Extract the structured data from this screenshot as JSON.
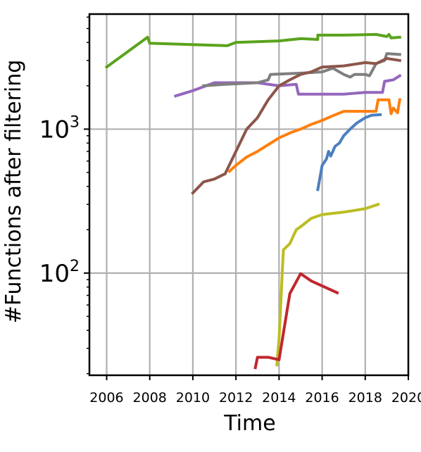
{
  "chart_data": {
    "type": "line",
    "title": "",
    "xlabel": "Time",
    "ylabel": "#Functions after filtering",
    "xlim": [
      2005.2,
      2020.0
    ],
    "ylim": [
      19.5,
      6300
    ],
    "yscale": "log",
    "grid": true,
    "legend": "none",
    "xticks": [
      {
        "value": 2006,
        "label": "2006"
      },
      {
        "value": 2008,
        "label": "2008"
      },
      {
        "value": 2010,
        "label": "2010"
      },
      {
        "value": 2012,
        "label": "2012"
      },
      {
        "value": 2014,
        "label": "2014"
      },
      {
        "value": 2016,
        "label": "2016"
      },
      {
        "value": 2018,
        "label": "2018"
      },
      {
        "value": 2020,
        "label": "2020"
      }
    ],
    "yticks": [
      {
        "value": 100,
        "base": "10",
        "exponent": "2"
      },
      {
        "value": 1000,
        "base": "10",
        "exponent": "3"
      }
    ],
    "series": [
      {
        "color": "#5aa31c",
        "points": [
          [
            2006.0,
            2700
          ],
          [
            2007.9,
            4350
          ],
          [
            2008.0,
            3950
          ],
          [
            2011.6,
            3800
          ],
          [
            2012.0,
            4000
          ],
          [
            2014.0,
            4100
          ],
          [
            2015.0,
            4250
          ],
          [
            2015.8,
            4200
          ],
          [
            2015.8,
            4500
          ],
          [
            2017.0,
            4500
          ],
          [
            2018.5,
            4550
          ],
          [
            2019.0,
            4400
          ],
          [
            2019.1,
            4550
          ],
          [
            2019.2,
            4300
          ],
          [
            2019.6,
            4350
          ]
        ]
      },
      {
        "color": "#9467bd",
        "points": [
          [
            2009.2,
            1700
          ],
          [
            2010.0,
            1850
          ],
          [
            2011.0,
            2100
          ],
          [
            2013.0,
            2100
          ],
          [
            2014.0,
            2000
          ],
          [
            2014.8,
            2050
          ],
          [
            2014.9,
            1750
          ],
          [
            2016.0,
            1750
          ],
          [
            2017.0,
            1750
          ],
          [
            2018.0,
            1800
          ],
          [
            2018.8,
            1800
          ],
          [
            2018.9,
            2150
          ],
          [
            2019.3,
            2200
          ],
          [
            2019.6,
            2350
          ]
        ]
      },
      {
        "color": "#7f7f7f",
        "points": [
          [
            2010.5,
            2000
          ],
          [
            2011.5,
            2050
          ],
          [
            2013.0,
            2100
          ],
          [
            2013.5,
            2200
          ],
          [
            2013.6,
            2400
          ],
          [
            2015.0,
            2450
          ],
          [
            2016.0,
            2500
          ],
          [
            2016.5,
            2650
          ],
          [
            2017.0,
            2400
          ],
          [
            2017.3,
            2300
          ],
          [
            2017.5,
            2400
          ],
          [
            2018.0,
            2400
          ],
          [
            2018.2,
            2350
          ],
          [
            2018.5,
            2850
          ],
          [
            2018.9,
            3000
          ],
          [
            2019.0,
            3350
          ],
          [
            2019.6,
            3300
          ]
        ]
      },
      {
        "color": "#8c564b",
        "points": [
          [
            2010.0,
            360
          ],
          [
            2010.5,
            430
          ],
          [
            2011.0,
            450
          ],
          [
            2011.5,
            490
          ],
          [
            2012.0,
            700
          ],
          [
            2012.5,
            1000
          ],
          [
            2013.0,
            1200
          ],
          [
            2013.5,
            1600
          ],
          [
            2014.0,
            2000
          ],
          [
            2014.5,
            2200
          ],
          [
            2015.0,
            2400
          ],
          [
            2015.5,
            2500
          ],
          [
            2016.0,
            2700
          ],
          [
            2017.0,
            2750
          ],
          [
            2018.0,
            2900
          ],
          [
            2018.5,
            2850
          ],
          [
            2019.0,
            3100
          ],
          [
            2019.6,
            3000
          ]
        ]
      },
      {
        "color": "#ff7f0e",
        "points": [
          [
            2011.7,
            510
          ],
          [
            2012.0,
            560
          ],
          [
            2012.5,
            640
          ],
          [
            2013.0,
            700
          ],
          [
            2013.5,
            780
          ],
          [
            2014.0,
            870
          ],
          [
            2014.5,
            940
          ],
          [
            2015.0,
            1000
          ],
          [
            2015.5,
            1080
          ],
          [
            2016.0,
            1150
          ],
          [
            2016.5,
            1240
          ],
          [
            2017.0,
            1330
          ],
          [
            2018.0,
            1330
          ],
          [
            2018.5,
            1330
          ],
          [
            2018.6,
            1600
          ],
          [
            2019.1,
            1600
          ],
          [
            2019.2,
            1280
          ],
          [
            2019.3,
            1400
          ],
          [
            2019.5,
            1300
          ],
          [
            2019.6,
            1600
          ]
        ]
      },
      {
        "color": "#4c7fc0",
        "points": [
          [
            2015.8,
            380
          ],
          [
            2016.0,
            560
          ],
          [
            2016.2,
            620
          ],
          [
            2016.3,
            700
          ],
          [
            2016.4,
            650
          ],
          [
            2016.6,
            760
          ],
          [
            2016.8,
            800
          ],
          [
            2017.0,
            900
          ],
          [
            2017.3,
            1000
          ],
          [
            2017.6,
            1100
          ],
          [
            2018.0,
            1200
          ],
          [
            2018.3,
            1250
          ],
          [
            2018.7,
            1260
          ]
        ]
      },
      {
        "color": "#bcbd22",
        "points": [
          [
            2013.9,
            23
          ],
          [
            2014.0,
            35
          ],
          [
            2014.2,
            145
          ],
          [
            2014.5,
            160
          ],
          [
            2014.8,
            200
          ],
          [
            2015.0,
            210
          ],
          [
            2015.5,
            240
          ],
          [
            2016.0,
            255
          ],
          [
            2017.0,
            265
          ],
          [
            2018.0,
            280
          ],
          [
            2018.6,
            300
          ]
        ]
      },
      {
        "color": "#c0272d",
        "points": [
          [
            2012.9,
            22
          ],
          [
            2013.0,
            26
          ],
          [
            2013.5,
            26
          ],
          [
            2014.0,
            25
          ],
          [
            2014.5,
            72
          ],
          [
            2015.0,
            99
          ],
          [
            2015.5,
            88
          ],
          [
            2016.7,
            73
          ]
        ]
      }
    ]
  }
}
